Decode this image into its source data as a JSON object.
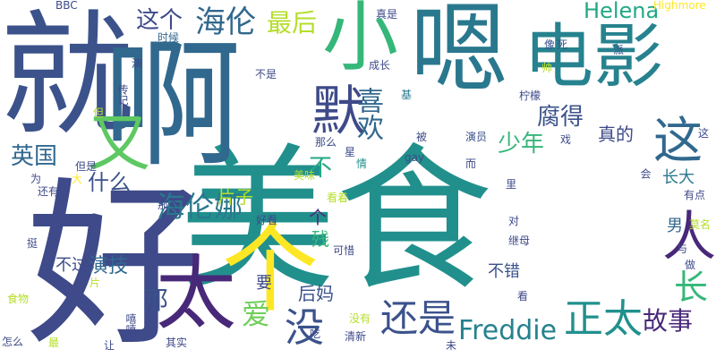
{
  "chart_data": {
    "type": "wordcloud",
    "title": "",
    "words": [
      {
        "text": "美食",
        "color": "#21908d",
        "orientation": "horizontal"
      },
      {
        "text": "就",
        "color": "#3b528b",
        "orientation": "horizontal"
      },
      {
        "text": "啊",
        "color": "#31688e",
        "orientation": "horizontal"
      },
      {
        "text": "好",
        "color": "#3e4a89",
        "orientation": "vertical"
      },
      {
        "text": "电影",
        "color": "#26828e",
        "orientation": "horizontal"
      },
      {
        "text": "小",
        "color": "#35b779",
        "orientation": "horizontal"
      },
      {
        "text": "嗯",
        "color": "#2a788e",
        "orientation": "horizontal"
      },
      {
        "text": "个",
        "color": "#fde725",
        "orientation": "horizontal"
      },
      {
        "text": "太",
        "color": "#482878",
        "orientation": "horizontal"
      },
      {
        "text": "又",
        "color": "#5ec962",
        "orientation": "horizontal"
      },
      {
        "text": "这",
        "color": "#31688e",
        "orientation": "horizontal"
      },
      {
        "text": "人",
        "color": "#482878",
        "orientation": "horizontal"
      },
      {
        "text": "默",
        "color": "#3e4a89",
        "orientation": "horizontal"
      },
      {
        "text": "海伦娜",
        "color": "#2a788e",
        "orientation": "horizontal"
      },
      {
        "text": "海伦",
        "color": "#31688e",
        "orientation": "horizontal"
      },
      {
        "text": "正太",
        "color": "#21908d",
        "orientation": "horizontal"
      },
      {
        "text": "还是",
        "color": "#3b528b",
        "orientation": "horizontal"
      },
      {
        "text": "Freddie",
        "color": "#26828e",
        "orientation": "horizontal"
      },
      {
        "text": "故事",
        "color": "#482878",
        "orientation": "horizontal"
      },
      {
        "text": "爱",
        "color": "#6ece58",
        "orientation": "horizontal"
      },
      {
        "text": "没",
        "color": "#3b528b",
        "orientation": "horizontal"
      },
      {
        "text": "长",
        "color": "#35b779",
        "orientation": "horizontal"
      },
      {
        "text": "英国",
        "color": "#31688e",
        "orientation": "horizontal"
      },
      {
        "text": "腐得",
        "color": "#3b528b",
        "orientation": "horizontal"
      },
      {
        "text": "少年",
        "color": "#35b779",
        "orientation": "horizontal"
      },
      {
        "text": "这个",
        "color": "#3e4a89",
        "orientation": "horizontal"
      },
      {
        "text": "最后",
        "color": "#b5de2b",
        "orientation": "horizontal"
      },
      {
        "text": "Helena",
        "color": "#22a884",
        "orientation": "horizontal"
      },
      {
        "text": "喜欢",
        "color": "#31688e",
        "orientation": "vertical"
      },
      {
        "text": "什么",
        "color": "#3b528b",
        "orientation": "horizontal"
      },
      {
        "text": "那",
        "color": "#3b528b",
        "orientation": "horizontal"
      },
      {
        "text": "不",
        "color": "#22a884",
        "orientation": "horizontal"
      },
      {
        "text": "真的",
        "color": "#3e4a89",
        "orientation": "horizontal"
      },
      {
        "text": "长大",
        "color": "#2a788e",
        "orientation": "horizontal"
      },
      {
        "text": "演技",
        "color": "#31688e",
        "orientation": "horizontal"
      },
      {
        "text": "不过",
        "color": "#3e4a89",
        "orientation": "horizontal"
      },
      {
        "text": "后妈",
        "color": "#3b528b",
        "orientation": "horizontal"
      },
      {
        "text": "片子",
        "color": "#b5de2b",
        "orientation": "horizontal"
      },
      {
        "text": "男",
        "color": "#31688e",
        "orientation": "horizontal"
      },
      {
        "text": "不错",
        "color": "#3b528b",
        "orientation": "horizontal"
      },
      {
        "text": "残",
        "color": "#35b779",
        "orientation": "horizontal"
      },
      {
        "text": "个",
        "color": "#482878",
        "orientation": "horizontal"
      },
      {
        "text": "要",
        "color": "#3e4a89",
        "orientation": "horizontal"
      },
      {
        "text": "BBC",
        "color": "#3e4a89",
        "orientation": "horizontal"
      },
      {
        "text": "Highmore",
        "color": "#fde725",
        "orientation": "horizontal"
      },
      {
        "text": "时候",
        "color": "#31688e",
        "orientation": "horizontal"
      },
      {
        "text": "像",
        "color": "#3b528b",
        "orientation": "horizontal"
      },
      {
        "text": "死",
        "color": "#3b528b",
        "orientation": "horizontal"
      },
      {
        "text": "真是",
        "color": "#3e4a89",
        "orientation": "horizontal"
      },
      {
        "text": "派",
        "color": "#3b528b",
        "orientation": "horizontal"
      },
      {
        "text": "演",
        "color": "#3e4a89",
        "orientation": "horizontal"
      },
      {
        "text": "成长",
        "color": "#3e4a89",
        "orientation": "horizontal"
      },
      {
        "text": "不是",
        "color": "#3e4a89",
        "orientation": "horizontal"
      },
      {
        "text": "帅",
        "color": "#b5de2b",
        "orientation": "horizontal"
      },
      {
        "text": "柠檬",
        "color": "#3e4a89",
        "orientation": "horizontal"
      },
      {
        "text": "基",
        "color": "#2a788e",
        "orientation": "horizontal"
      },
      {
        "text": "传记",
        "color": "#3e4a89",
        "orientation": "vertical"
      },
      {
        "text": "但",
        "color": "#b5de2b",
        "orientation": "horizontal"
      },
      {
        "text": "星",
        "color": "#3e4a89",
        "orientation": "horizontal"
      },
      {
        "text": "那么",
        "color": "#3e4a89",
        "orientation": "horizontal"
      },
      {
        "text": "被",
        "color": "#3e4a89",
        "orientation": "horizontal"
      },
      {
        "text": "演员",
        "color": "#3b528b",
        "orientation": "horizontal"
      },
      {
        "text": "这",
        "color": "#3e4a89",
        "orientation": "horizontal"
      },
      {
        "text": "戏",
        "color": "#3e4a89",
        "orientation": "horizontal"
      },
      {
        "text": "但是",
        "color": "#3e4a89",
        "orientation": "horizontal"
      },
      {
        "text": "情",
        "color": "#21908d",
        "orientation": "horizontal"
      },
      {
        "text": "gay",
        "color": "#3e4a89",
        "orientation": "horizontal"
      },
      {
        "text": "而",
        "color": "#3e4a89",
        "orientation": "horizontal"
      },
      {
        "text": "里",
        "color": "#3e4a89",
        "orientation": "horizontal"
      },
      {
        "text": "会",
        "color": "#3e4a89",
        "orientation": "vertical"
      },
      {
        "text": "为",
        "color": "#3e4a89",
        "orientation": "horizontal"
      },
      {
        "text": "大",
        "color": "#fde725",
        "orientation": "horizontal"
      },
      {
        "text": "还有",
        "color": "#3e4a89",
        "orientation": "horizontal"
      },
      {
        "text": "美味",
        "color": "#b5de2b",
        "orientation": "horizontal"
      },
      {
        "text": "么",
        "color": "#3e4a89",
        "orientation": "horizontal"
      },
      {
        "text": "那个",
        "color": "#3e4a89",
        "orientation": "horizontal"
      },
      {
        "text": "看着",
        "color": "#b5de2b",
        "orientation": "horizontal"
      },
      {
        "text": "有点",
        "color": "#3e4a89",
        "orientation": "horizontal"
      },
      {
        "text": "好看",
        "color": "#3e4a89",
        "orientation": "horizontal"
      },
      {
        "text": "对",
        "color": "#3e4a89",
        "orientation": "horizontal"
      },
      {
        "text": "莫名",
        "color": "#b5de2b",
        "orientation": "horizontal"
      },
      {
        "text": "继母",
        "color": "#3e4a89",
        "orientation": "horizontal"
      },
      {
        "text": "挺",
        "color": "#3e4a89",
        "orientation": "horizontal"
      },
      {
        "text": "与",
        "color": "#3e4a89",
        "orientation": "horizontal"
      },
      {
        "text": "可惜",
        "color": "#3e4a89",
        "orientation": "horizontal"
      },
      {
        "text": "片",
        "color": "#b5de2b",
        "orientation": "horizontal"
      },
      {
        "text": "做",
        "color": "#3e4a89",
        "orientation": "horizontal"
      },
      {
        "text": "食物",
        "color": "#b5de2b",
        "orientation": "horizontal"
      },
      {
        "text": "看",
        "color": "#3e4a89",
        "orientation": "horizontal"
      },
      {
        "text": "没有",
        "color": "#b5de2b",
        "orientation": "horizontal"
      },
      {
        "text": "怎么",
        "color": "#3e4a89",
        "orientation": "horizontal"
      },
      {
        "text": "最",
        "color": "#b5de2b",
        "orientation": "horizontal"
      },
      {
        "text": "吃",
        "color": "#3e4a89",
        "orientation": "horizontal"
      },
      {
        "text": "清新",
        "color": "#3e4a89",
        "orientation": "horizontal"
      },
      {
        "text": "让",
        "color": "#3e4a89",
        "orientation": "horizontal"
      },
      {
        "text": "其实",
        "color": "#3e4a89",
        "orientation": "horizontal"
      },
      {
        "text": "未",
        "color": "#3e4a89",
        "orientation": "horizontal"
      },
      {
        "text": "嘻嘻",
        "color": "#3e4a89",
        "orientation": "vertical"
      }
    ]
  }
}
